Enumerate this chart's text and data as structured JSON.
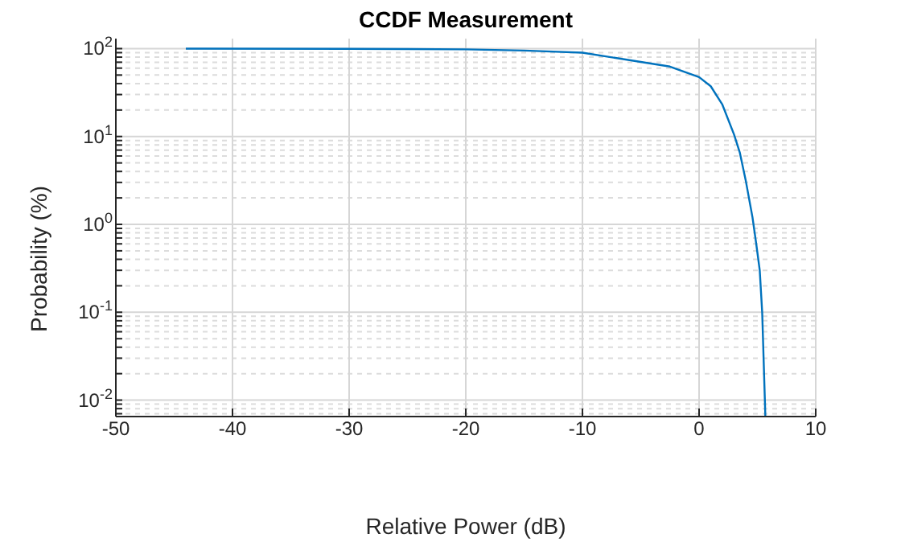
{
  "chart_data": {
    "type": "line",
    "title": "CCDF Measurement",
    "xlabel": "Relative Power (dB)",
    "ylabel": "Probability (%)",
    "x": [
      -44,
      -30,
      -20,
      -15,
      -10,
      -5,
      -2.5,
      0,
      1,
      2,
      3,
      3.5,
      4,
      4.58,
      4.9,
      5.2,
      5.41,
      5.64,
      5.68
    ],
    "series": [
      {
        "color": "#0072bd",
        "values": [
          99.99,
          99.5,
          98,
          95,
          90,
          70.5,
          62.5,
          47.4,
          37.3,
          23,
          10.5,
          6.5,
          3.16,
          1.2,
          0.6,
          0.3,
          0.1,
          0.01,
          0.0066
        ]
      }
    ],
    "log": "y",
    "xlim": [
      -50,
      10
    ],
    "xticks": [
      -50,
      -40,
      -30,
      -20,
      -10,
      0,
      10
    ],
    "ylim": [
      0.0065,
      130
    ],
    "yticks": [
      {
        "value": 0.007,
        "label": null
      },
      {
        "value": 0.008,
        "label": null
      },
      {
        "value": 0.009,
        "label": null
      },
      {
        "value": 0.01,
        "label": "10$^{-2}$"
      },
      {
        "value": 0.02,
        "label": null
      },
      {
        "value": 0.03,
        "label": null
      },
      {
        "value": 0.04,
        "label": null
      },
      {
        "value": 0.05,
        "label": null
      },
      {
        "value": 0.06,
        "label": null
      },
      {
        "value": 0.07,
        "label": null
      },
      {
        "value": 0.08,
        "label": null
      },
      {
        "value": 0.09,
        "label": null
      },
      {
        "value": 0.1,
        "label": "10$^{-1}$"
      },
      {
        "value": 0.2,
        "label": null
      },
      {
        "value": 0.3,
        "label": null
      },
      {
        "value": 0.4,
        "label": null
      },
      {
        "value": 0.5,
        "label": null
      },
      {
        "value": 0.6,
        "label": null
      },
      {
        "value": 0.7,
        "label": null
      },
      {
        "value": 0.8,
        "label": null
      },
      {
        "value": 0.9,
        "label": null
      },
      {
        "value": 1,
        "label": "10$^{0}$"
      },
      {
        "value": 2,
        "label": null
      },
      {
        "value": 3,
        "label": null
      },
      {
        "value": 4,
        "label": null
      },
      {
        "value": 5,
        "label": null
      },
      {
        "value": 6,
        "label": null
      },
      {
        "value": 7,
        "label": null
      },
      {
        "value": 8,
        "label": null
      },
      {
        "value": 9,
        "label": null
      },
      {
        "value": 10,
        "label": "10$^{1}$"
      },
      {
        "value": 20,
        "label": null
      },
      {
        "value": 30,
        "label": null
      },
      {
        "value": 40,
        "label": null
      },
      {
        "value": 50,
        "label": null
      },
      {
        "value": 60,
        "label": null
      },
      {
        "value": 70,
        "label": null
      },
      {
        "value": 80,
        "label": null
      },
      {
        "value": 90,
        "label": null
      },
      {
        "value": 100,
        "label": "10$^{2}$"
      }
    ],
    "grid": true,
    "marker": "none",
    "line_style": "solid"
  }
}
